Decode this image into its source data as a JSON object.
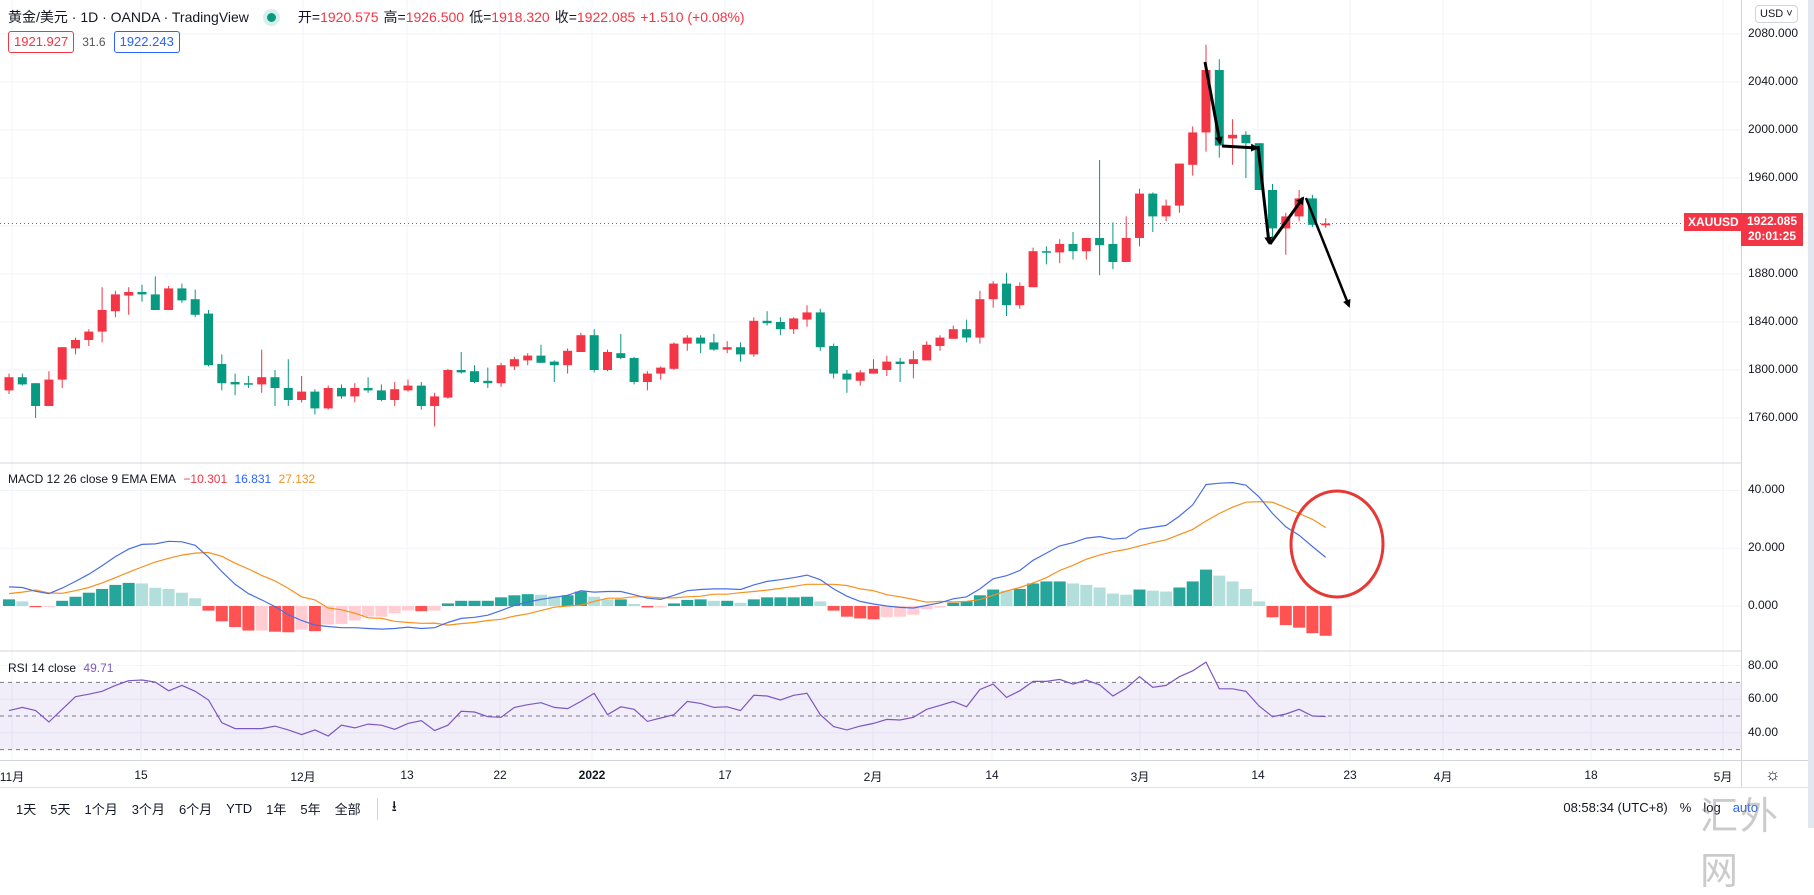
{
  "header": {
    "title": "黄金/美元 · 1D · OANDA · TradingView",
    "ohlc": [
      {
        "label": "开=",
        "value": "1920.575"
      },
      {
        "label": "高=",
        "value": "1926.500"
      },
      {
        "label": "低=",
        "value": "1918.320"
      },
      {
        "label": "收=",
        "value": "1922.085"
      }
    ],
    "change": "+1.510 (+0.08%)",
    "bid": "1921.927",
    "spread": "31.6",
    "ask": "1922.243"
  },
  "price_axis": {
    "currency": "USD ˅",
    "symbol_tag": "XAUUSD",
    "last_price": "1922.085",
    "countdown": "20:01:25",
    "tick_labels": [
      "2080.000",
      "2040.000",
      "2000.000",
      "1960.000",
      "1880.000",
      "1840.000",
      "1800.000",
      "1760.000"
    ]
  },
  "macd_legend": {
    "name": "MACD 12 26 close 9 EMA EMA",
    "hist": "−10.301",
    "macd": "16.831",
    "signal": "27.132",
    "tick_labels": [
      "40.000",
      "20.000",
      "0.000"
    ]
  },
  "rsi_legend": {
    "name": "RSI 14 close",
    "value": "49.71",
    "tick_labels": [
      "80.00",
      "60.00",
      "40.00"
    ]
  },
  "time_axis": {
    "labels": [
      "11月",
      "15",
      "12月",
      "13",
      "22",
      "2022",
      "17",
      "2月",
      "14",
      "3月",
      "14",
      "23",
      "4月",
      "18",
      "5月"
    ]
  },
  "toolbar": {
    "ranges": [
      "1天",
      "5天",
      "1个月",
      "3个月",
      "6个月",
      "YTD",
      "1年",
      "5年",
      "全部"
    ],
    "goto_icon": "⭳",
    "clock": "08:58:34 (UTC+8)",
    "percent": "%",
    "log": "log",
    "auto": "auto"
  },
  "watermark": "汇外网",
  "colors": {
    "up": "#f23645",
    "down": "#089981",
    "macd": "#4a6fe3",
    "signal": "#f7901e",
    "rsi": "#7e57c2",
    "hist_up_strong": "#26a69a",
    "hist_up_weak": "#b2dfdb",
    "hist_down_strong": "#ff5252",
    "hist_down_weak": "#ffcdd2"
  },
  "chart_data": [
    {
      "type": "candlestick",
      "title": "XAUUSD 1D",
      "ylim": [
        1740,
        2090
      ],
      "yticks": [
        2080,
        2040,
        2000,
        1960,
        1920,
        1880,
        1840,
        1800,
        1760
      ],
      "last_price": 1922.085,
      "ohlc": [
        [
          1783,
          1797,
          1780,
          1794
        ],
        [
          1794,
          1797,
          1787,
          1788
        ],
        [
          1789,
          1789,
          1760,
          1770
        ],
        [
          1770,
          1799,
          1770,
          1792
        ],
        [
          1792,
          1819,
          1785,
          1819
        ],
        [
          1818,
          1827,
          1813,
          1825
        ],
        [
          1825,
          1834,
          1820,
          1832
        ],
        [
          1832,
          1869,
          1823,
          1850
        ],
        [
          1849,
          1866,
          1844,
          1863
        ],
        [
          1862,
          1869,
          1846,
          1865
        ],
        [
          1865,
          1871,
          1857,
          1863
        ],
        [
          1863,
          1878,
          1850,
          1850
        ],
        [
          1850,
          1870,
          1850,
          1868
        ],
        [
          1868,
          1872,
          1856,
          1858
        ],
        [
          1859,
          1867,
          1844,
          1846
        ],
        [
          1847,
          1850,
          1803,
          1804
        ],
        [
          1805,
          1813,
          1783,
          1789
        ],
        [
          1790,
          1797,
          1779,
          1788
        ],
        [
          1789,
          1795,
          1785,
          1788
        ],
        [
          1788,
          1817,
          1781,
          1794
        ],
        [
          1794,
          1800,
          1770,
          1785
        ],
        [
          1785,
          1809,
          1770,
          1775
        ],
        [
          1775,
          1795,
          1773,
          1782
        ],
        [
          1782,
          1784,
          1763,
          1768
        ],
        [
          1768,
          1787,
          1767,
          1785
        ],
        [
          1785,
          1788,
          1776,
          1778
        ],
        [
          1778,
          1789,
          1773,
          1785
        ],
        [
          1785,
          1794,
          1781,
          1783
        ],
        [
          1783,
          1788,
          1774,
          1775
        ],
        [
          1775,
          1790,
          1770,
          1784
        ],
        [
          1783,
          1792,
          1782,
          1787
        ],
        [
          1787,
          1790,
          1767,
          1770
        ],
        [
          1770,
          1781,
          1753,
          1778
        ],
        [
          1777,
          1801,
          1776,
          1800
        ],
        [
          1800,
          1815,
          1797,
          1798
        ],
        [
          1799,
          1804,
          1789,
          1790
        ],
        [
          1791,
          1802,
          1785,
          1789
        ],
        [
          1789,
          1806,
          1786,
          1804
        ],
        [
          1803,
          1811,
          1800,
          1809
        ],
        [
          1808,
          1814,
          1804,
          1812
        ],
        [
          1812,
          1821,
          1806,
          1806
        ],
        [
          1807,
          1808,
          1790,
          1804
        ],
        [
          1804,
          1818,
          1797,
          1816
        ],
        [
          1815,
          1831,
          1815,
          1829
        ],
        [
          1829,
          1834,
          1798,
          1800
        ],
        [
          1800,
          1817,
          1799,
          1815
        ],
        [
          1814,
          1830,
          1809,
          1810
        ],
        [
          1810,
          1811,
          1788,
          1790
        ],
        [
          1790,
          1799,
          1783,
          1797
        ],
        [
          1797,
          1803,
          1792,
          1802
        ],
        [
          1801,
          1823,
          1800,
          1822
        ],
        [
          1822,
          1829,
          1816,
          1827
        ],
        [
          1827,
          1829,
          1814,
          1822
        ],
        [
          1823,
          1830,
          1816,
          1817
        ],
        [
          1817,
          1824,
          1814,
          1819
        ],
        [
          1819,
          1823,
          1807,
          1813
        ],
        [
          1813,
          1844,
          1811,
          1841
        ],
        [
          1841,
          1849,
          1837,
          1839
        ],
        [
          1840,
          1844,
          1829,
          1834
        ],
        [
          1834,
          1844,
          1830,
          1843
        ],
        [
          1842,
          1854,
          1836,
          1848
        ],
        [
          1848,
          1851,
          1816,
          1819
        ],
        [
          1820,
          1822,
          1793,
          1797
        ],
        [
          1797,
          1800,
          1781,
          1792
        ],
        [
          1791,
          1800,
          1787,
          1798
        ],
        [
          1797,
          1809,
          1797,
          1801
        ],
        [
          1800,
          1812,
          1795,
          1807
        ],
        [
          1807,
          1810,
          1790,
          1805
        ],
        [
          1805,
          1816,
          1793,
          1809
        ],
        [
          1808,
          1824,
          1808,
          1821
        ],
        [
          1820,
          1829,
          1816,
          1827
        ],
        [
          1826,
          1837,
          1826,
          1834
        ],
        [
          1834,
          1842,
          1823,
          1827
        ],
        [
          1827,
          1866,
          1822,
          1859
        ],
        [
          1859,
          1874,
          1852,
          1872
        ],
        [
          1872,
          1881,
          1845,
          1854
        ],
        [
          1854,
          1873,
          1851,
          1870
        ],
        [
          1869,
          1902,
          1869,
          1899
        ],
        [
          1899,
          1903,
          1888,
          1898
        ],
        [
          1898,
          1909,
          1889,
          1905
        ],
        [
          1905,
          1915,
          1892,
          1899
        ],
        [
          1899,
          1910,
          1892,
          1910
        ],
        [
          1910,
          1975,
          1879,
          1904
        ],
        [
          1905,
          1923,
          1884,
          1890
        ],
        [
          1890,
          1928,
          1890,
          1910
        ],
        [
          1910,
          1951,
          1903,
          1947
        ],
        [
          1947,
          1948,
          1915,
          1928
        ],
        [
          1928,
          1942,
          1924,
          1937
        ],
        [
          1937,
          1972,
          1931,
          1972
        ],
        [
          1971,
          2003,
          1962,
          1998
        ],
        [
          1998,
          2071,
          1982,
          2050
        ],
        [
          2050,
          2059,
          1977,
          1987
        ],
        [
          1993,
          2009,
          1971,
          1996
        ],
        [
          1996,
          1999,
          1960,
          1989
        ],
        [
          1989,
          1989,
          1950,
          1950
        ],
        [
          1950,
          1955,
          1906,
          1918
        ],
        [
          1918,
          1931,
          1896,
          1928
        ],
        [
          1928,
          1950,
          1924,
          1943
        ],
        [
          1943,
          1946,
          1919,
          1921
        ],
        [
          1920.575,
          1926.5,
          1918.32,
          1922.085
        ]
      ]
    },
    {
      "type": "line",
      "title": "MACD 12 26 close 9 EMA EMA",
      "ylim": [
        -17,
        49
      ],
      "yticks": [
        40,
        20,
        0
      ],
      "macd": [
        6.6,
        6.4,
        5.1,
        4.3,
        6.2,
        8.5,
        11,
        13.9,
        17.1,
        19.7,
        21.3,
        21.5,
        22.4,
        22.2,
        21,
        16.9,
        11.9,
        7.5,
        4.3,
        2.1,
        -0.2,
        -3,
        -5,
        -6.6,
        -7.1,
        -7.5,
        -7.5,
        -7.8,
        -8,
        -7.8,
        -7.3,
        -7.8,
        -7.5,
        -5.7,
        -4.3,
        -3.9,
        -3.2,
        -1.6,
        0.2,
        1.4,
        2.3,
        3,
        3.7,
        5.3,
        4.8,
        5,
        5,
        3.9,
        2.7,
        2.3,
        3.7,
        5.3,
        5.7,
        5.9,
        5.9,
        5.7,
        7.3,
        8.5,
        9.1,
        9.8,
        10.7,
        9.1,
        5.9,
        3.4,
        1.6,
        0.7,
        0,
        -0.5,
        -0.7,
        0.2,
        1.1,
        2.5,
        3.2,
        5.9,
        9.4,
        10.5,
        12.3,
        15.8,
        18.3,
        20.8,
        21.9,
        23.5,
        24,
        23.1,
        23.5,
        26.5,
        27.2,
        27.9,
        31.1,
        35,
        42,
        42.5,
        42.7,
        41.8,
        37.7,
        32,
        27.4,
        24.5,
        20.6,
        16.831
      ],
      "histogram": [
        2.3,
        1.6,
        -0.4,
        -0.2,
        1.8,
        3.2,
        4.6,
        5.9,
        7.3,
        8,
        7.8,
        6.3,
        5.9,
        4.6,
        2.7,
        -1.6,
        -5.3,
        -7.3,
        -8.5,
        -8.5,
        -8.9,
        -9.1,
        -8.2,
        -8.7,
        -6.4,
        -6.2,
        -5,
        -3.7,
        -3.7,
        -2.5,
        -1.6,
        -1.8,
        -1.6,
        0.9,
        1.8,
        1.8,
        1.8,
        3,
        3.7,
        4.1,
        3.9,
        3.4,
        3.7,
        5,
        3.2,
        2.3,
        2.3,
        0.7,
        -0.5,
        -0.5,
        0.9,
        2.1,
        2.3,
        1.8,
        1.8,
        1.1,
        2.3,
        3,
        3,
        3,
        3.2,
        1.6,
        -1.6,
        -3.7,
        -4.3,
        -4.6,
        -3.9,
        -3.7,
        -3,
        -1.1,
        -0.5,
        1.1,
        1.6,
        3.7,
        5.7,
        5.3,
        5.9,
        7.8,
        8.5,
        8.5,
        7.8,
        7.3,
        6.4,
        4.3,
        3.9,
        5.7,
        5.3,
        5,
        6.4,
        8.5,
        12.6,
        10.5,
        8.5,
        5.9,
        1.6,
        -3.9,
        -6.6,
        -7.5,
        -9.4,
        -10.301
      ]
    },
    {
      "type": "line",
      "title": "RSI 14 close",
      "ylim": [
        25,
        85
      ],
      "bands": [
        70,
        50,
        30
      ],
      "yticks": [
        80,
        60,
        40
      ],
      "values": [
        53.2,
        55.1,
        53.2,
        46.4,
        54,
        61.5,
        63,
        64.7,
        68.2,
        71,
        71.4,
        70.2,
        65,
        68.2,
        64.7,
        59.5,
        46,
        42.5,
        42.5,
        42.5,
        44,
        41.7,
        38.9,
        41.7,
        38.1,
        44.5,
        42.9,
        45.2,
        44.5,
        42.1,
        45.6,
        47.2,
        41.3,
        44.5,
        52.8,
        52.4,
        49.6,
        49.2,
        55.1,
        56.7,
        57.9,
        55.1,
        54.4,
        58.7,
        63.5,
        50.8,
        55.5,
        54,
        46.8,
        48.8,
        50.8,
        58.7,
        57.5,
        55.1,
        55.5,
        53.2,
        62.3,
        61.9,
        59.5,
        62.3,
        63.5,
        50.8,
        43.7,
        41.7,
        44,
        45.6,
        48,
        47.6,
        49.2,
        54,
        56.3,
        58.7,
        55.5,
        65.8,
        69,
        61.1,
        65,
        70.6,
        70.6,
        71.8,
        69,
        71.4,
        68.6,
        61.9,
        66.6,
        73.4,
        67,
        68.2,
        73.4,
        76.9,
        82.1,
        66.2,
        66.2,
        64.7,
        55.9,
        49.6,
        51.2,
        54,
        50,
        49.71
      ]
    }
  ]
}
